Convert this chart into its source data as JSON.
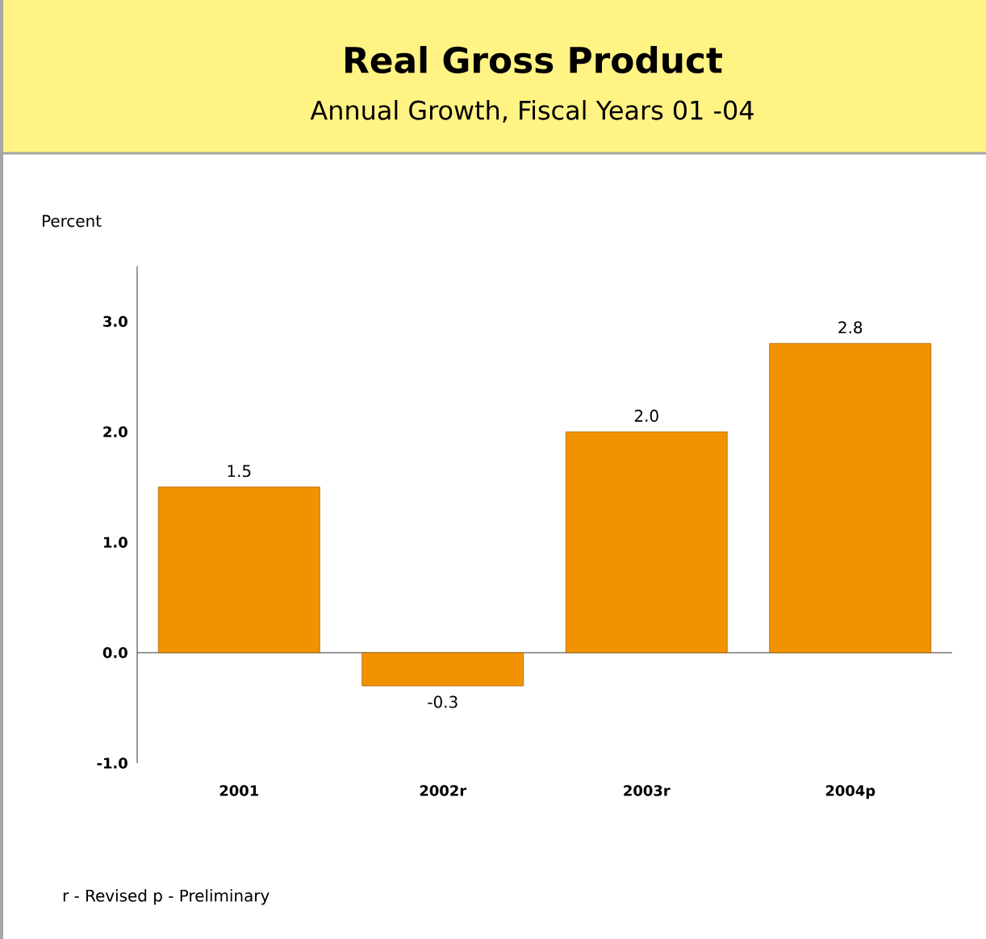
{
  "chart_data": {
    "type": "bar",
    "title": "Real Gross Product",
    "subtitle": "Annual Growth, Fiscal Years 01 -04",
    "ylabel": "Percent",
    "categories": [
      "2001",
      "2002r",
      "2003r",
      "2004p"
    ],
    "values": [
      1.5,
      -0.3,
      2.0,
      2.8
    ],
    "value_labels": [
      "1.5",
      "-0.3",
      "2.0",
      "2.8"
    ],
    "color": "#f39200",
    "ylim": [
      -1,
      3.5
    ],
    "yticks": [
      {
        "value": -1,
        "label": "-1.0"
      },
      {
        "value": 0,
        "label": "0.0"
      },
      {
        "value": 1,
        "label": "1.0"
      },
      {
        "value": 2,
        "label": "2.0"
      },
      {
        "value": 3,
        "label": "3.0"
      }
    ],
    "annotations": [
      "r - Revised  p - Preliminary"
    ]
  }
}
